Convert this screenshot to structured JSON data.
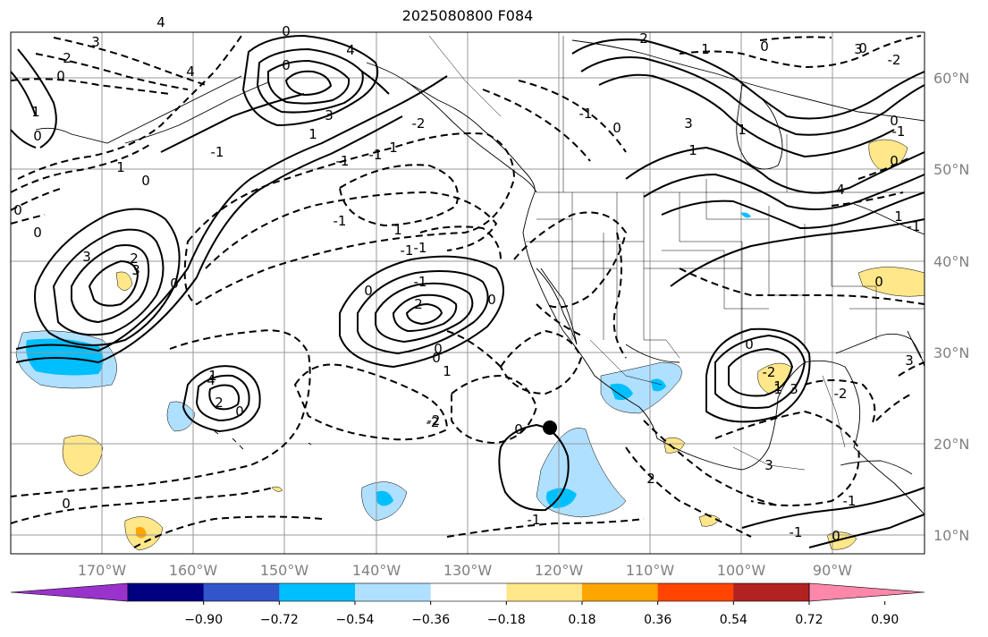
{
  "title": "2025080800 F084",
  "lon_labels": [
    "170°W",
    "160°W",
    "150°W",
    "140°W",
    "130°W",
    "120°W",
    "110°W",
    "100°W",
    "90°W"
  ],
  "lat_labels": [
    "60°N",
    "50°N",
    "40°N",
    "30°N",
    "20°N",
    "10°N"
  ],
  "colorbar": {
    "colors": [
      "#9933cc",
      "#000080",
      "#3355cc",
      "#00bfff",
      "#b0e0ff",
      "#ffffff",
      "#ffe78a",
      "#ffa500",
      "#ff4500",
      "#b22222",
      "#ff88aa"
    ],
    "tick_labels": [
      "−0.90",
      "−0.72",
      "−0.54",
      "−0.36",
      "−0.18",
      "0.18",
      "0.36",
      "0.54",
      "0.72",
      "0.90"
    ]
  },
  "contour_labels": [
    "3",
    "2",
    "0",
    "1",
    "1",
    "0",
    "3",
    "4",
    "-2",
    "0",
    "-1",
    "0",
    "1",
    "3",
    "2",
    "3",
    "4",
    "-1",
    "-1",
    "-1",
    "2",
    "0",
    "1",
    "0",
    "4",
    "-2",
    "-2",
    "-1",
    "0",
    "2",
    "3",
    "4",
    "0",
    "-1",
    "1",
    "0",
    "-2",
    "3",
    "-2",
    "0",
    "-1",
    "2",
    "3",
    "-1",
    "3",
    "1",
    "0",
    "1",
    "0",
    "-2",
    "0",
    "-1",
    "0",
    "0",
    "0",
    "0",
    "-1",
    "0",
    "1",
    "1",
    "-1",
    "0",
    "-1",
    "0",
    "1",
    "-1",
    "1",
    "0",
    "1",
    "2",
    "1",
    "0",
    "3",
    "4",
    "0"
  ],
  "marker": {
    "name": "black dot"
  }
}
